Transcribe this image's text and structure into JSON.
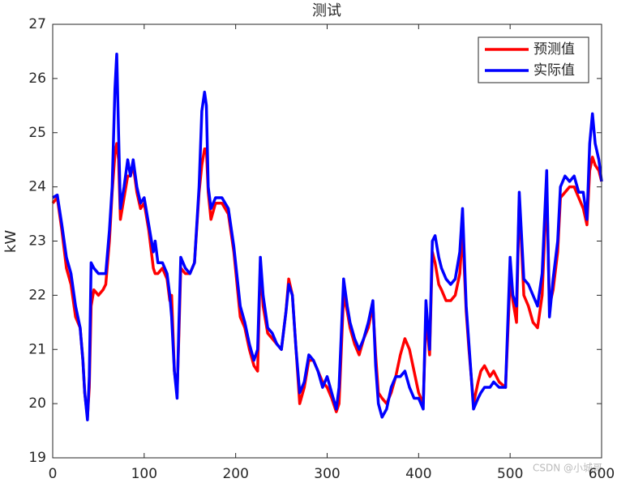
{
  "chart_data": {
    "type": "line",
    "title": "测试",
    "y_label": "kW",
    "watermark": "CSDN @小城哥",
    "legend": "upper right",
    "grid": false,
    "x": [
      0,
      5,
      10,
      15,
      20,
      25,
      30,
      33,
      35,
      38,
      40,
      42,
      45,
      50,
      55,
      58,
      62,
      65,
      68,
      70,
      72,
      74,
      78,
      82,
      85,
      88,
      92,
      96,
      100,
      105,
      110,
      112,
      115,
      120,
      125,
      128,
      130,
      133,
      136,
      138,
      140,
      145,
      150,
      155,
      160,
      163,
      166,
      168,
      170,
      173,
      178,
      185,
      192,
      198,
      205,
      210,
      215,
      220,
      224,
      227,
      230,
      235,
      240,
      245,
      250,
      255,
      258,
      262,
      266,
      270,
      275,
      280,
      285,
      290,
      295,
      300,
      305,
      310,
      313,
      318,
      322,
      325,
      330,
      335,
      340,
      345,
      350,
      353,
      356,
      360,
      365,
      370,
      375,
      380,
      385,
      390,
      395,
      400,
      405,
      408,
      412,
      415,
      418,
      422,
      425,
      430,
      435,
      440,
      445,
      448,
      452,
      455,
      460,
      465,
      468,
      472,
      478,
      482,
      488,
      495,
      500,
      503,
      507,
      510,
      515,
      520,
      525,
      530,
      535,
      540,
      543,
      547,
      552,
      555,
      560,
      565,
      570,
      575,
      580,
      584,
      587,
      590,
      593,
      597,
      600
    ],
    "series": [
      {
        "name": "预测值",
        "color": "#ff0000",
        "values": [
          23.7,
          23.8,
          23.2,
          22.5,
          22.2,
          21.6,
          21.4,
          20.8,
          20.2,
          19.75,
          20.3,
          21.8,
          22.1,
          22.0,
          22.1,
          22.2,
          23.0,
          23.9,
          24.6,
          24.8,
          24.5,
          23.4,
          23.8,
          24.2,
          24.2,
          24.4,
          23.9,
          23.6,
          23.7,
          23.2,
          22.5,
          22.4,
          22.4,
          22.5,
          22.3,
          21.9,
          22.0,
          20.6,
          20.2,
          21.3,
          22.5,
          22.4,
          22.4,
          22.6,
          23.9,
          24.4,
          24.7,
          24.7,
          23.9,
          23.4,
          23.7,
          23.7,
          23.5,
          22.8,
          21.6,
          21.4,
          21.0,
          20.7,
          20.6,
          22.6,
          21.8,
          21.3,
          21.2,
          21.1,
          21.0,
          21.7,
          22.3,
          22.0,
          21.0,
          20.0,
          20.3,
          20.8,
          20.8,
          20.6,
          20.4,
          20.3,
          20.1,
          19.85,
          20.0,
          22.0,
          21.7,
          21.4,
          21.1,
          20.9,
          21.2,
          21.4,
          21.8,
          20.9,
          20.2,
          20.1,
          20.0,
          20.2,
          20.5,
          20.9,
          21.2,
          21.0,
          20.6,
          20.2,
          20.0,
          21.6,
          20.9,
          22.8,
          22.6,
          22.2,
          22.1,
          21.9,
          21.9,
          22.0,
          22.4,
          23.2,
          21.7,
          21.0,
          20.0,
          20.4,
          20.6,
          20.7,
          20.5,
          20.6,
          20.4,
          20.3,
          22.3,
          21.9,
          21.5,
          23.8,
          22.0,
          21.8,
          21.5,
          21.4,
          22.0,
          24.0,
          21.8,
          22.1,
          22.8,
          23.8,
          23.9,
          24.0,
          24.0,
          23.8,
          23.6,
          23.3,
          24.3,
          24.55,
          24.4,
          24.3,
          24.1
        ]
      },
      {
        "name": "实际值",
        "color": "#0000ff",
        "values": [
          23.8,
          23.85,
          23.3,
          22.7,
          22.4,
          21.8,
          21.4,
          20.8,
          20.2,
          19.7,
          20.5,
          22.6,
          22.5,
          22.4,
          22.4,
          22.4,
          23.2,
          24.0,
          25.8,
          26.45,
          25.0,
          23.6,
          24.0,
          24.5,
          24.2,
          24.5,
          24.0,
          23.7,
          23.8,
          23.3,
          22.8,
          23.0,
          22.6,
          22.6,
          22.4,
          22.0,
          21.6,
          20.6,
          20.1,
          21.5,
          22.7,
          22.5,
          22.4,
          22.6,
          24.0,
          25.4,
          25.75,
          25.5,
          24.0,
          23.6,
          23.8,
          23.8,
          23.6,
          22.9,
          21.8,
          21.5,
          21.1,
          20.8,
          21.0,
          22.7,
          22.0,
          21.4,
          21.3,
          21.1,
          21.0,
          21.7,
          22.2,
          22.0,
          21.0,
          20.2,
          20.4,
          20.9,
          20.8,
          20.6,
          20.3,
          20.5,
          20.2,
          19.9,
          20.3,
          22.3,
          21.8,
          21.5,
          21.2,
          21.0,
          21.2,
          21.5,
          21.9,
          20.7,
          20.0,
          19.75,
          19.9,
          20.3,
          20.5,
          20.5,
          20.6,
          20.3,
          20.1,
          20.1,
          19.9,
          21.9,
          21.0,
          23.0,
          23.1,
          22.7,
          22.5,
          22.3,
          22.2,
          22.3,
          22.8,
          23.6,
          21.8,
          21.1,
          19.9,
          20.1,
          20.2,
          20.3,
          20.3,
          20.4,
          20.3,
          20.3,
          22.7,
          22.0,
          21.8,
          23.9,
          22.3,
          22.2,
          22.0,
          21.8,
          22.4,
          24.3,
          21.6,
          22.3,
          23.0,
          24.0,
          24.2,
          24.1,
          24.2,
          23.9,
          23.9,
          23.4,
          24.8,
          25.35,
          24.8,
          24.5,
          24.1
        ]
      }
    ],
    "xlim": [
      0,
      600
    ],
    "xticks": [
      0,
      100,
      200,
      300,
      400,
      500,
      600
    ],
    "ylim": [
      19,
      27
    ],
    "yticks": [
      19,
      20,
      21,
      22,
      23,
      24,
      25,
      26,
      27
    ]
  }
}
